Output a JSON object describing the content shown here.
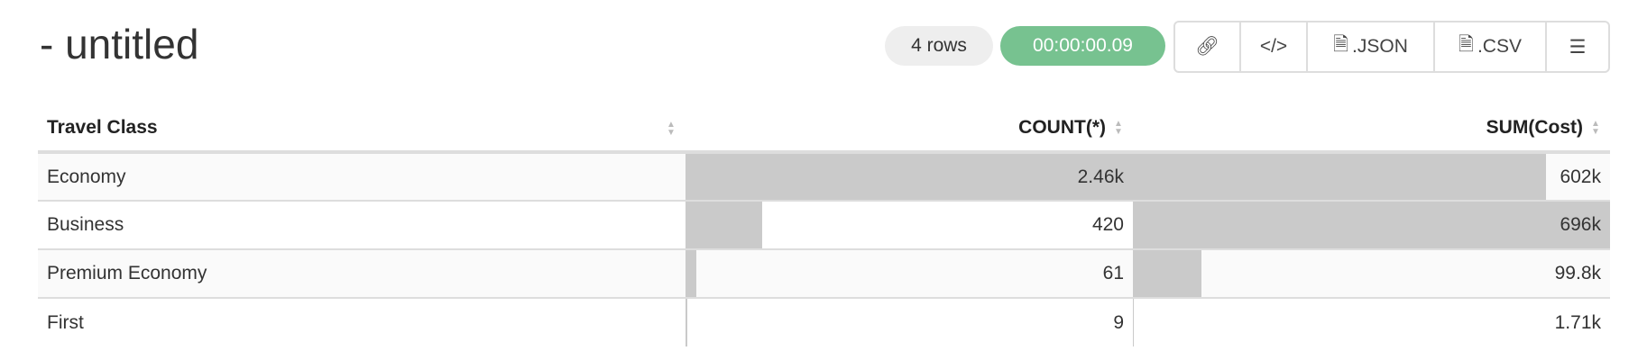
{
  "title": "- untitled",
  "row_count": "4 rows",
  "timer": "00:00:00.09",
  "colors": {
    "timer_bg": "#77c290",
    "bar": "#cacaca"
  },
  "toolbar": [
    {
      "icon": "link-icon",
      "label": ""
    },
    {
      "icon": "code-icon",
      "label": ""
    },
    {
      "icon": "json-file-icon",
      "label": ".JSON"
    },
    {
      "icon": "csv-file-icon",
      "label": ".CSV"
    },
    {
      "icon": "menu-icon",
      "label": ""
    }
  ],
  "table": {
    "headers": [
      "Travel Class",
      "COUNT(*)",
      "SUM(Cost)"
    ],
    "rows": [
      {
        "cls": "Economy",
        "count": "2.46k",
        "count_frac": 1.0,
        "sum": "602k",
        "sum_frac": 0.865
      },
      {
        "cls": "Business",
        "count": "420",
        "count_frac": 0.171,
        "sum": "696k",
        "sum_frac": 1.0
      },
      {
        "cls": "Premium Economy",
        "count": "61",
        "count_frac": 0.025,
        "sum": "99.8k",
        "sum_frac": 0.143
      },
      {
        "cls": "First",
        "count": "9",
        "count_frac": 0.004,
        "sum": "1.71k",
        "sum_frac": 0.002
      }
    ]
  }
}
